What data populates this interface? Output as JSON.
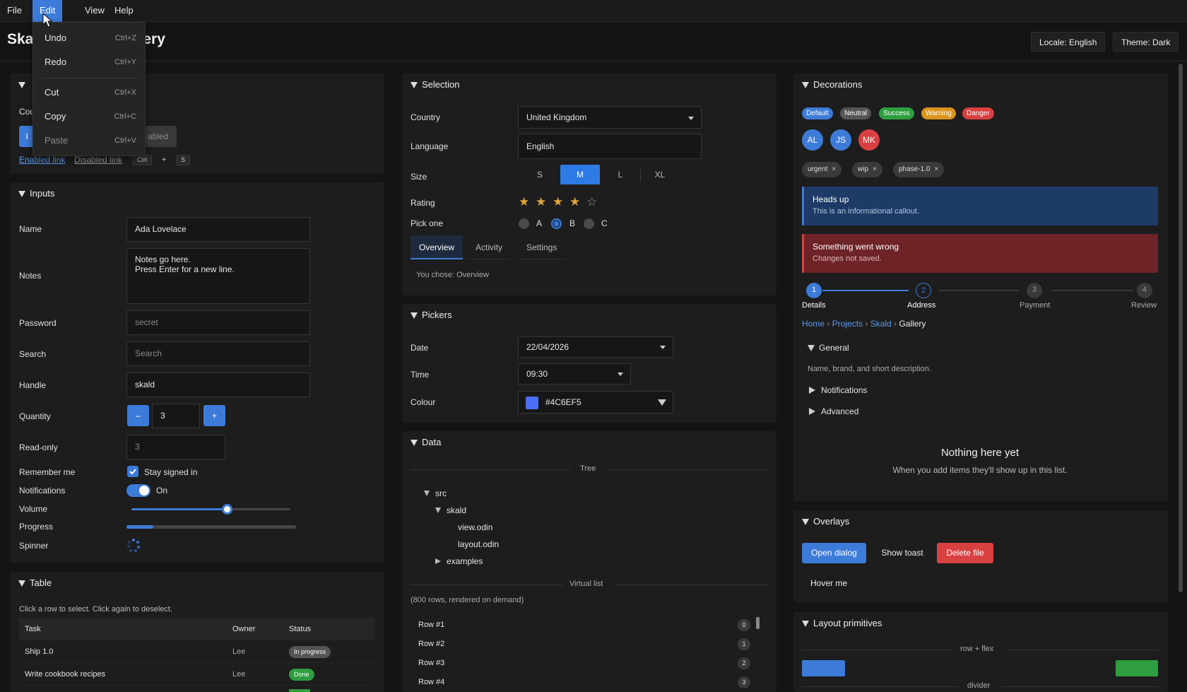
{
  "menubar": {
    "file": "File",
    "edit": "Edit",
    "view": "View",
    "help": "Help"
  },
  "edit_menu": [
    {
      "label": "Undo",
      "shortcut": "Ctrl+Z"
    },
    {
      "label": "Redo",
      "shortcut": "Ctrl+Y"
    },
    {
      "label": "Cut",
      "shortcut": "Ctrl+X"
    },
    {
      "label": "Copy",
      "shortcut": "Ctrl+C"
    },
    {
      "label": "Paste",
      "shortcut": "Ctrl+V"
    }
  ],
  "title": {
    "left": "Ska",
    "right": "ery"
  },
  "top_buttons": {
    "locale": "Locale: English",
    "theme": "Theme: Dark"
  },
  "buttons_panel": {
    "label_fragment": "Cou",
    "primary_fragment": "I",
    "disabled_fragment": "abled",
    "enabled_link": "Enabled link",
    "disabled_link": "Disabled link",
    "kbd1": "Ctrl",
    "plus": "+",
    "kbd2": "S"
  },
  "inputs": {
    "header": "Inputs",
    "name_label": "Name",
    "name_value": "Ada Lovelace",
    "notes_label": "Notes",
    "notes_line1": "Notes go here.",
    "notes_line2": "Press Enter for a new line.",
    "password_label": "Password",
    "password_placeholder": "secret",
    "search_label": "Search",
    "search_placeholder": "Search",
    "handle_label": "Handle",
    "handle_value": "skald",
    "quantity_label": "Quantity",
    "quantity_value": "3",
    "minus": "–",
    "plus": "+",
    "readonly_label": "Read-only",
    "readonly_value": "3",
    "remember_label": "Remember me",
    "remember_text": "Stay signed in",
    "notifications_label": "Notifications",
    "notifications_text": "On",
    "volume_label": "Volume",
    "volume_value": 0.6,
    "progress_label": "Progress",
    "progress_value": 0.16,
    "spinner_label": "Spinner"
  },
  "table": {
    "header": "Table",
    "hint": "Click a row to select. Click again to deselect.",
    "columns": [
      "Task",
      "Owner",
      "Status"
    ],
    "rows": [
      {
        "task": "Ship 1.0",
        "owner": "Lee",
        "status": "In progress",
        "status_color": "#555555"
      },
      {
        "task": "Write cookbook recipes",
        "owner": "Lee",
        "status": "Done",
        "status_color": "#2e9e3e"
      }
    ]
  },
  "selection": {
    "header": "Selection",
    "country_label": "Country",
    "country_value": "United Kingdom",
    "language_label": "Language",
    "language_value": "English",
    "size_label": "Size",
    "sizes": [
      "S",
      "M",
      "L",
      "XL"
    ],
    "rating_label": "Rating",
    "rating_value": 4,
    "rating_max": 5,
    "pick_label": "Pick one",
    "options": [
      "A",
      "B",
      "C"
    ],
    "tabs": [
      "Overview",
      "Activity",
      "Settings"
    ],
    "chosen": "You chose: Overview"
  },
  "pickers": {
    "header": "Pickers",
    "date_label": "Date",
    "date_value": "22/04/2026",
    "time_label": "Time",
    "time_value": "09:30",
    "colour_label": "Colour",
    "colour_value": "#4C6EF5"
  },
  "data": {
    "header": "Data",
    "tree_label": "Tree",
    "tree": {
      "src": "src",
      "skald": "skald",
      "view": "view.odin",
      "layout": "layout.odin",
      "examples": "examples"
    },
    "virtual_label": "Virtual list",
    "virtual_hint": "(800 rows, rendered on demand)",
    "rows": [
      {
        "label": "Row #1",
        "count": "0"
      },
      {
        "label": "Row #2",
        "count": "1"
      },
      {
        "label": "Row #3",
        "count": "2"
      },
      {
        "label": "Row #4",
        "count": "3"
      }
    ]
  },
  "decorations": {
    "header": "Decorations",
    "badges": [
      {
        "label": "Default",
        "color": "#3d7bd9"
      },
      {
        "label": "Neutral",
        "color": "#555555"
      },
      {
        "label": "Success",
        "color": "#2e9e3e"
      },
      {
        "label": "Warning",
        "color": "#d9941e"
      },
      {
        "label": "Danger",
        "color": "#d94040"
      }
    ],
    "avatars": [
      {
        "label": "AL",
        "color": "#3d7bd9"
      },
      {
        "label": "JS",
        "color": "#3d7bd9"
      },
      {
        "label": "MK",
        "color": "#d94040"
      }
    ],
    "chips": [
      "urgent",
      "wip",
      "phase-1.0"
    ],
    "info_title": "Heads up",
    "info_body": "This is an informational callout.",
    "error_title": "Something went wrong",
    "error_body": "Changes not saved.",
    "steps": [
      {
        "num": "1",
        "label": "Details"
      },
      {
        "num": "2",
        "label": "Address"
      },
      {
        "num": "3",
        "label": "Payment"
      },
      {
        "num": "4",
        "label": "Review"
      }
    ],
    "breadcrumb": [
      "Home",
      "Projects",
      "Skald",
      "Gallery"
    ],
    "acc_general": "General",
    "acc_general_body": "Name, brand, and short description.",
    "acc_notifications": "Notifications",
    "acc_advanced": "Advanced",
    "empty_title": "Nothing here yet",
    "empty_body": "When you add items they'll show up in this list."
  },
  "overlays": {
    "header": "Overlays",
    "open_dialog": "Open dialog",
    "show_toast": "Show toast",
    "delete_file": "Delete file",
    "hover": "Hover me"
  },
  "layout": {
    "header": "Layout primitives",
    "row_flex": "row + flex",
    "divider": "divider"
  }
}
